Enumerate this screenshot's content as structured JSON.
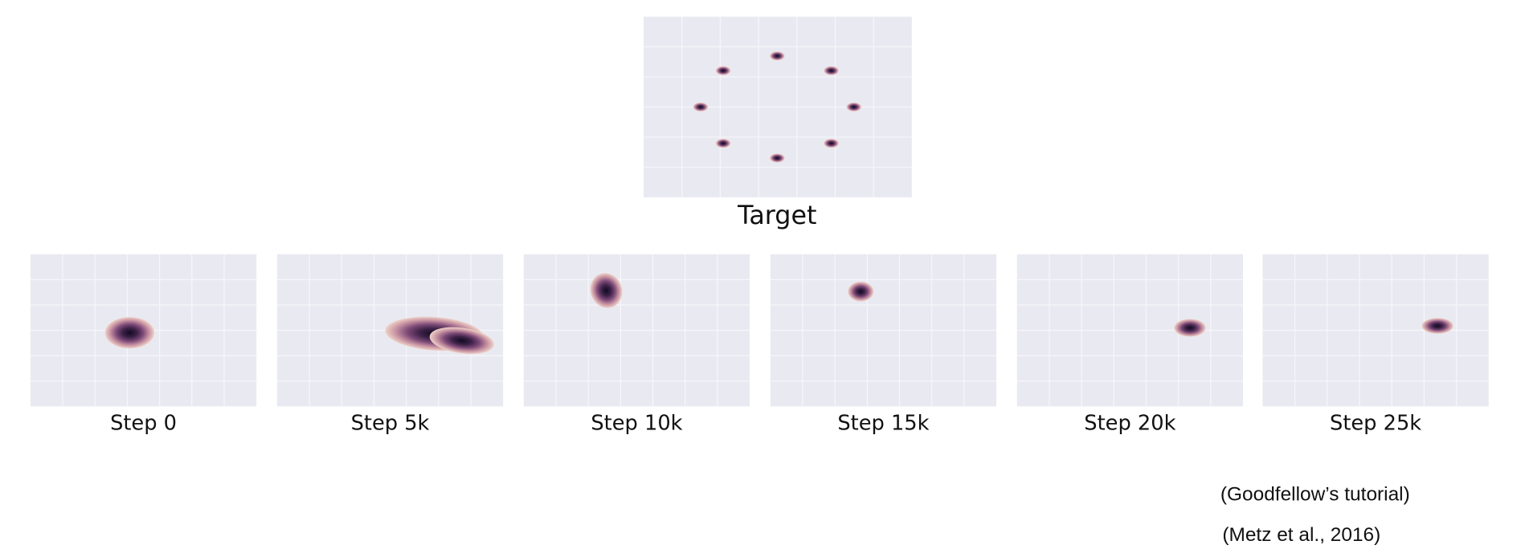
{
  "target": {
    "label": "Target"
  },
  "steps": [
    {
      "label": "Step 0"
    },
    {
      "label": "Step 5k"
    },
    {
      "label": "Step 10k"
    },
    {
      "label": "Step 15k"
    },
    {
      "label": "Step 20k"
    },
    {
      "label": "Step 25k"
    }
  ],
  "citations": [
    "(Goodfellow’s tutorial)",
    "(Metz et al., 2016)"
  ]
}
